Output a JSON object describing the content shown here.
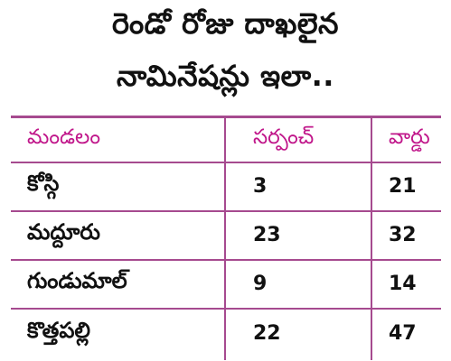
{
  "title": {
    "line1": "రెండో రోజు దాఖలైన",
    "line2": "నామినేషన్లు ఇలా.."
  },
  "table": {
    "headers": [
      "మండలం",
      "సర్పంచ్",
      "వార్డు"
    ],
    "rows": [
      [
        "కోస్గి",
        "3",
        "21"
      ],
      [
        "మద్దూరు",
        "23",
        "32"
      ],
      [
        "గుండుమాల్",
        "9",
        "14"
      ],
      [
        "కొత్తపల్లి",
        "22",
        "47"
      ]
    ]
  },
  "colors": {
    "accent": "#c0168a",
    "rule": "#a64a8f",
    "text": "#111111"
  }
}
